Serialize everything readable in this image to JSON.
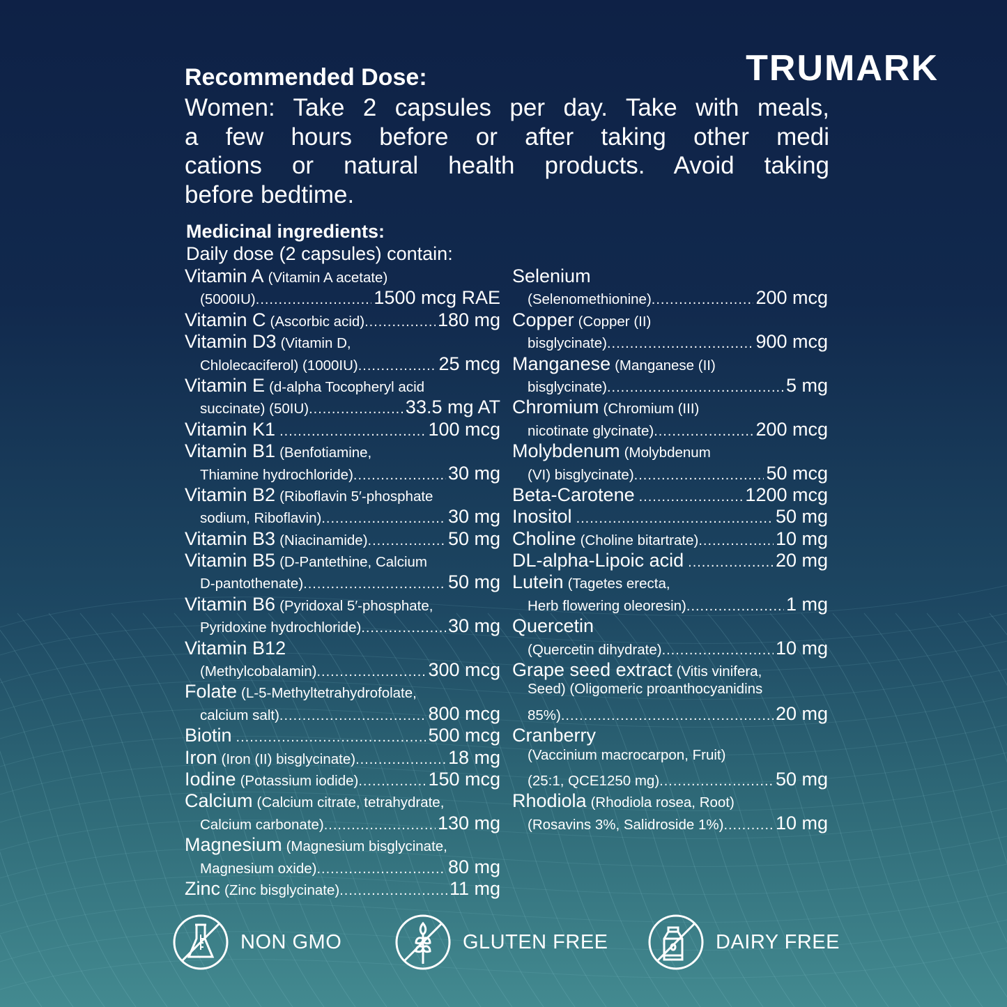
{
  "brand": "TRUMARK",
  "dose": {
    "title": "Recommended Dose:",
    "lines": [
      "Women: Take 2 capsules per day. Take with meals,",
      "a few hours before or after taking other medi",
      "cations or natural health products. Avoid taking",
      "before bedtime."
    ]
  },
  "ingredients": {
    "title": "Medicinal ingredients:",
    "subtitle": "Daily dose (2 capsules) contain:",
    "left": [
      {
        "m": "Vitamin A",
        "s": "(Vitamin A acetate)"
      },
      {
        "i": true,
        "s": "(5000IU)",
        "v": "1500 mcg RAE"
      },
      {
        "m": "Vitamin C",
        "s": "(Ascorbic acid)",
        "v": "180 mg"
      },
      {
        "m": "Vitamin D3",
        "s": "(Vitamin D,"
      },
      {
        "i": true,
        "s": "Chlolecaciferol) (1000IU)",
        "v": "25 mcg"
      },
      {
        "m": "Vitamin E",
        "s": "(d-alpha Tocopheryl acid"
      },
      {
        "i": true,
        "s": "succinate) (50IU)",
        "v": "33.5 mg AT"
      },
      {
        "m": "Vitamin K1",
        "v": "100 mcg"
      },
      {
        "m": "Vitamin B1",
        "s": "(Benfotiamine,"
      },
      {
        "i": true,
        "s": "Thiamine hydrochloride)",
        "v": "30 mg"
      },
      {
        "m": "Vitamin B2",
        "s": "(Riboflavin 5′-phosphate"
      },
      {
        "i": true,
        "s": "sodium, Riboflavin)",
        "v": "30 mg"
      },
      {
        "m": "Vitamin B3",
        "s": "(Niacinamide)",
        "v": "50 mg"
      },
      {
        "m": "Vitamin B5",
        "s": "(D-Pantethine, Calcium"
      },
      {
        "i": true,
        "s": "D-pantothenate)",
        "v": "50 mg"
      },
      {
        "m": "Vitamin B6",
        "s": "(Pyridoxal 5′-phosphate,"
      },
      {
        "i": true,
        "s": "Pyridoxine hydrochloride)",
        "v": "30 mg"
      },
      {
        "m": "Vitamin B12"
      },
      {
        "i": true,
        "s": "(Methylcobalamin)",
        "v": "300 mcg"
      },
      {
        "m": "Folate",
        "s": "(L-5-Methyltetrahydrofolate,"
      },
      {
        "i": true,
        "s": "calcium salt)",
        "v": "800 mcg"
      },
      {
        "m": "Biotin",
        "v": "500 mcg"
      },
      {
        "m": "Iron",
        "s": "(Iron (II) bisglycinate)",
        "v": "18 mg"
      },
      {
        "m": "Iodine",
        "s": "(Potassium iodide)",
        "v": "150 mcg"
      },
      {
        "m": "Calcium",
        "s": "(Calcium citrate, tetrahydrate,"
      },
      {
        "i": true,
        "s": "Calcium carbonate)",
        "v": "130 mg"
      },
      {
        "m": "Magnesium",
        "s": "(Magnesium bisglycinate,"
      },
      {
        "i": true,
        "s": "Magnesium oxide)",
        "v": "80 mg"
      },
      {
        "m": "Zinc",
        "s": "(Zinc bisglycinate)",
        "v": "11 mg"
      }
    ],
    "right": [
      {
        "m": "Selenium"
      },
      {
        "i": true,
        "s": "(Selenomethionine)",
        "v": "200 mcg"
      },
      {
        "m": "Copper",
        "s": "(Copper (II)"
      },
      {
        "i": true,
        "s": "bisglycinate)",
        "v": "900 mcg"
      },
      {
        "m": "Manganese",
        "s": "(Manganese (II)"
      },
      {
        "i": true,
        "s": "bisglycinate)",
        "v": "5 mg"
      },
      {
        "m": "Chromium",
        "s": "(Chromium (III)"
      },
      {
        "i": true,
        "s": "nicotinate glycinate)",
        "v": "200 mcg"
      },
      {
        "m": "Molybdenum",
        "s": "(Molybdenum"
      },
      {
        "i": true,
        "s": "(VI) bisglycinate)",
        "v": "50 mcg"
      },
      {
        "m": "Beta-Carotene",
        "v": "1200 mcg"
      },
      {
        "m": "Inositol",
        "v": "50 mg"
      },
      {
        "m": "Choline",
        "s": "(Choline bitartrate)",
        "v": "10 mg"
      },
      {
        "m": "DL-alpha-Lipoic acid",
        "v": "20 mg"
      },
      {
        "m": "Lutein",
        "s": "(Tagetes erecta,"
      },
      {
        "i": true,
        "s": "Herb flowering oleoresin)",
        "v": "1 mg"
      },
      {
        "m": "Quercetin"
      },
      {
        "i": true,
        "s": "(Quercetin dihydrate)",
        "v": "10 mg"
      },
      {
        "m": "Grape seed extract",
        "s": "(Vitis vinifera,"
      },
      {
        "i": true,
        "s": "Seed) (Oligomeric proanthocyanidins"
      },
      {
        "i": true,
        "s": "85%)",
        "v": "20 mg"
      },
      {
        "m": "Cranberry"
      },
      {
        "i": true,
        "s": "(Vaccinium macrocarpon, Fruit)"
      },
      {
        "i": true,
        "s": "(25:1, QCE1250 mg)",
        "v": "50 mg"
      },
      {
        "m": "Rhodiola",
        "s": "(Rhodiola rosea, Root)"
      },
      {
        "i": true,
        "s": "(Rosavins 3%, Salidroside 1%)",
        "v": "10 mg"
      }
    ]
  },
  "badges": [
    {
      "label": "NON GMO",
      "icon": "flask-crossed-icon"
    },
    {
      "label": "GLUTEN FREE",
      "icon": "wheat-crossed-icon"
    },
    {
      "label": "DAIRY FREE",
      "icon": "milk-carton-crossed-icon"
    }
  ],
  "colors": {
    "top": "#0e2146",
    "bottom": "#438a90",
    "text": "#ffffff"
  }
}
